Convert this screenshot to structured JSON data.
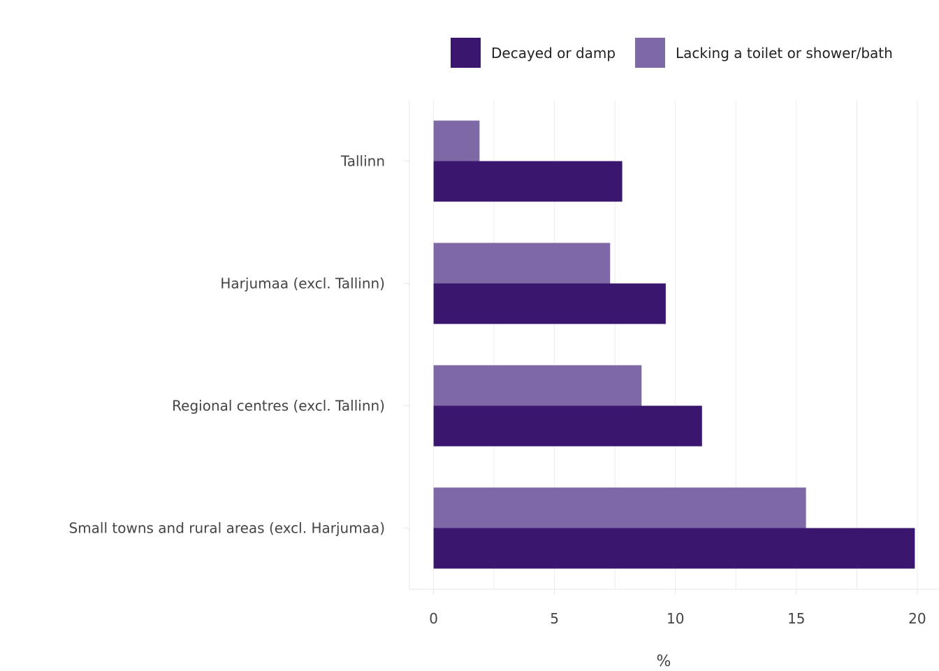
{
  "chart_data": {
    "type": "bar",
    "orientation": "horizontal",
    "categories": [
      "Tallinn",
      "Harjumaa (excl. Tallinn)",
      "Regional centres (excl. Tallinn)",
      "Small towns and rural areas (excl. Harjumaa)"
    ],
    "series": [
      {
        "name": "Decayed or damp",
        "color": "#3a166f",
        "values": [
          7.8,
          9.6,
          11.1,
          19.9
        ]
      },
      {
        "name": "Lacking a toilet or shower/bath",
        "color": "#7f68a6",
        "values": [
          1.9,
          7.3,
          8.6,
          15.4
        ]
      }
    ],
    "xlabel": "%",
    "xlim": [
      -1,
      20.9
    ],
    "xticks": [
      0,
      5,
      10,
      15,
      20
    ],
    "grid": true,
    "legend_position": "top-right"
  }
}
